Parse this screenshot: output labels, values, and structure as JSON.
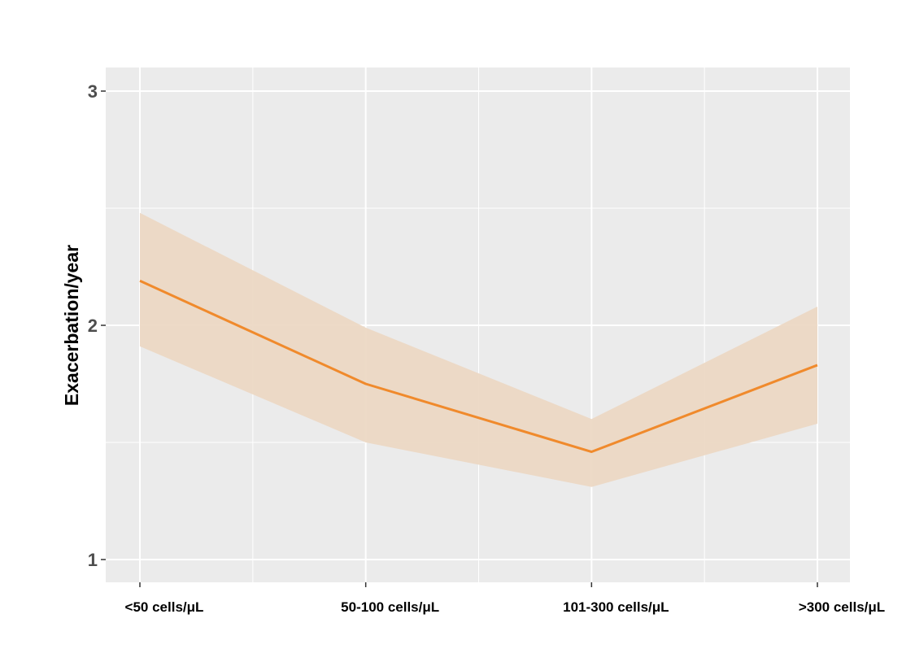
{
  "chart_data": {
    "type": "line",
    "title": "",
    "xlabel": "",
    "ylabel": "Exacerbation/year",
    "categories": [
      "<50 cells/μL",
      "50-100 cells/μL",
      "101-300 cells/μL",
      ">300 cells/μL"
    ],
    "series": [
      {
        "values": [
          2.19,
          1.75,
          1.46,
          1.83
        ],
        "lower": [
          1.91,
          1.5,
          1.31,
          1.58
        ],
        "upper": [
          2.48,
          1.99,
          1.6,
          2.08
        ]
      }
    ],
    "ylim": [
      0.9,
      3.1
    ],
    "yticks": [
      1,
      2,
      3
    ],
    "grid": true,
    "colors": {
      "line": "#f08a2c",
      "band": "#ecd8c4",
      "panel": "#ebebeb",
      "grid": "#ffffff",
      "tick_mark": "#333333"
    }
  }
}
